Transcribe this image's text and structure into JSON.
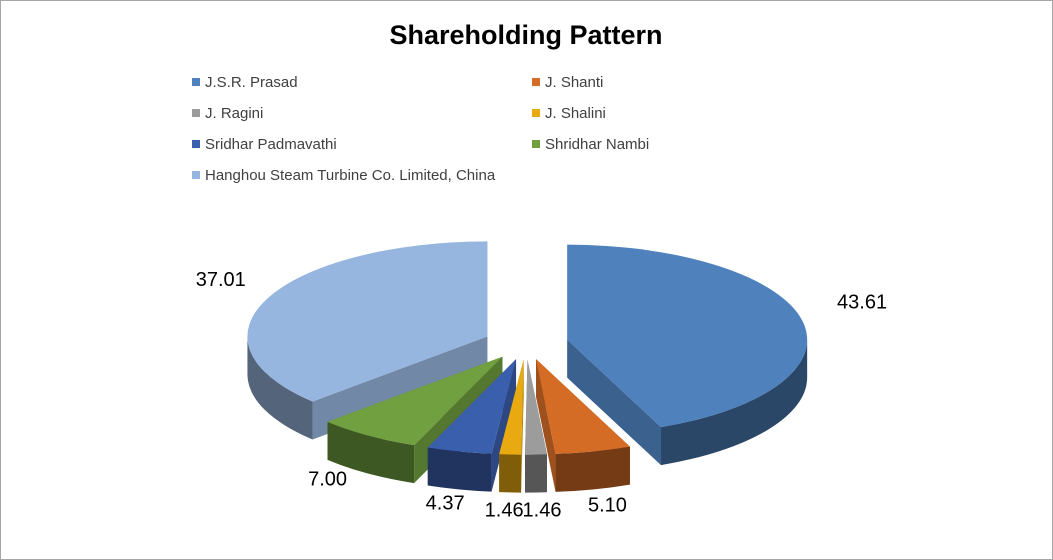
{
  "chart_data": {
    "type": "pie",
    "title": "Shareholding Pattern",
    "style": "3d-exploded",
    "legend_position": "top",
    "slices": [
      {
        "label": "J.S.R. Prasad",
        "value": 43.61,
        "display": "43.61",
        "color": "#4f81bd"
      },
      {
        "label": "J. Shanti",
        "value": 5.1,
        "display": "5.10",
        "color": "#d46c26"
      },
      {
        "label": "J. Ragini",
        "value": 1.46,
        "display": "1.46",
        "color": "#9c9c9c"
      },
      {
        "label": "J. Shalini",
        "value": 1.46,
        "display": "1.46",
        "color": "#e8aa10"
      },
      {
        "label": "Sridhar Padmavathi",
        "value": 4.37,
        "display": "4.37",
        "color": "#3a5fad"
      },
      {
        "label": "Shridhar Nambi",
        "value": 7.0,
        "display": "7.00",
        "color": "#70a040"
      },
      {
        "label": "Hanghou Steam Turbine Co. Limited, China",
        "value": 37.01,
        "display": "37.01",
        "color": "#96b6df"
      }
    ]
  }
}
